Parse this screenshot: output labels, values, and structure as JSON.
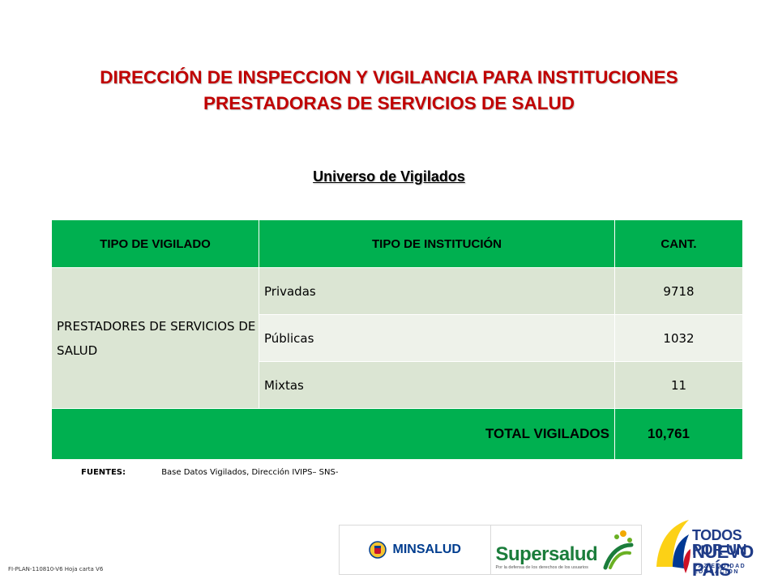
{
  "title": {
    "line1": "DIRECCIÓN DE INSPECCION Y VIGILANCIA PARA INSTITUCIONES",
    "line2": "PRESTADORAS DE SERVICIOS DE SALUD"
  },
  "subtitle": "Universo de Vigilados",
  "table": {
    "headers": [
      "TIPO DE VIGILADO",
      "TIPO DE INSTITUCIÓN",
      "CANT."
    ],
    "group": "PRESTADORES DE SERVICIOS DE SALUD",
    "rows": [
      {
        "type": "Privadas",
        "count": "9718"
      },
      {
        "type": "Públicas",
        "count": "1032"
      },
      {
        "type": "Mixtas",
        "count": "11"
      }
    ],
    "total_label": "TOTAL VIGILADOS",
    "total_value": "10,761"
  },
  "sources": {
    "label": "FUENTES:",
    "text": "Base Datos Vigilados, Dirección IVIPS– SNS-"
  },
  "footer_code": "FI-PLAN-110810-V6 Hoja carta V6",
  "logos": {
    "minsalud": "MINSALUD",
    "supersalud": "Supersalud",
    "supersalud_tagline": "Por la defensa de los derechos de los usuarios",
    "tpn_line1": "TODOS POR UN",
    "tpn_line2": "NUEVO PAÍS",
    "tpn_line3": "PAZ EQUIDAD EDUCACIÓN"
  },
  "colors": {
    "title_red": "#c00000",
    "header_green": "#00b050",
    "row_dark": "#dbe5d3",
    "row_light": "#eef2ea",
    "brand_blue": "#1f3b87"
  }
}
